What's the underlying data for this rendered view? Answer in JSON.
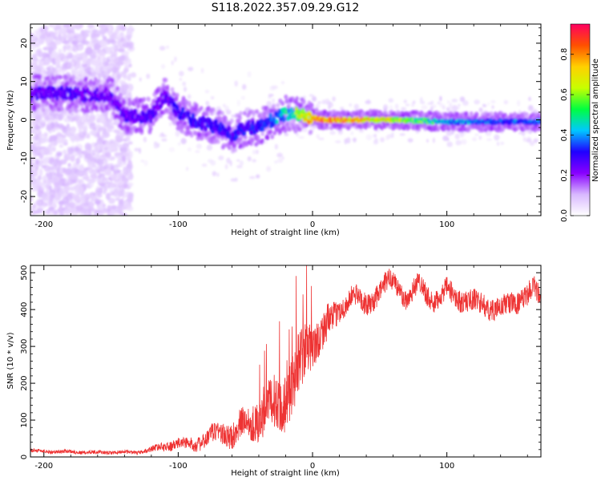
{
  "figure": {
    "title": "S118.2022.357.09.29.G12"
  },
  "chart_data": [
    {
      "type": "heatmap",
      "xlabel": "Height of straight line (km)",
      "ylabel": "Frequency (Hz)",
      "xlim": [
        -210,
        170
      ],
      "ylim": [
        -25,
        25
      ],
      "x_ticks": [
        -200,
        -100,
        0,
        100
      ],
      "y_ticks": [
        -20,
        -10,
        0,
        10,
        20
      ],
      "colorbar": {
        "label": "Normalized spectral amplitude",
        "range": [
          0,
          0.95
        ],
        "ticks": [
          "0.0",
          "0.2",
          "0.4",
          "0.6",
          "0.8"
        ],
        "colormap": [
          "#ffffff",
          "#d8b8ff",
          "#8800ff",
          "#2000ff",
          "#00c8ff",
          "#00ff40",
          "#c8ff00",
          "#ffd000",
          "#ff5000",
          "#ff0060"
        ]
      },
      "ridge": {
        "height_km": [
          -205,
          -190,
          -170,
          -150,
          -140,
          -130,
          -120,
          -110,
          -100,
          -90,
          -80,
          -70,
          -60,
          -50,
          -40,
          -30,
          -20,
          -10,
          0,
          10,
          30,
          60,
          100,
          140,
          170
        ],
        "frequency_hz": [
          7,
          7,
          6.5,
          6.5,
          1,
          1,
          1,
          6.5,
          2,
          0,
          -1,
          -2,
          -4,
          -2,
          -2,
          0,
          1.5,
          1.5,
          0.5,
          0,
          0,
          0,
          -0.5,
          -0.5,
          -0.5
        ],
        "amplitude": [
          0.3,
          0.32,
          0.3,
          0.28,
          0.3,
          0.3,
          0.3,
          0.28,
          0.35,
          0.35,
          0.35,
          0.35,
          0.35,
          0.35,
          0.38,
          0.4,
          0.5,
          0.65,
          0.85,
          0.9,
          0.85,
          0.7,
          0.45,
          0.4,
          0.4
        ]
      },
      "grid": false
    },
    {
      "type": "line",
      "xlabel": "Height of straight line (km)",
      "ylabel": "SNR (10 * v/v)",
      "xlim": [
        -210,
        170
      ],
      "ylim": [
        0,
        520
      ],
      "x_ticks": [
        -200,
        -100,
        0,
        100
      ],
      "y_ticks": [
        0,
        100,
        200,
        300,
        400,
        500
      ],
      "series": [
        {
          "color": "#ee3333",
          "x": [
            -210,
            -200,
            -180,
            -160,
            -140,
            -130,
            -120,
            -110,
            -100,
            -90,
            -80,
            -70,
            -60,
            -50,
            -40,
            -30,
            -20,
            -10,
            -5,
            0,
            10,
            15,
            20,
            25,
            30,
            40,
            50,
            55,
            60,
            70,
            80,
            90,
            100,
            110,
            120,
            130,
            140,
            150,
            160,
            165,
            170
          ],
          "y": [
            18,
            15,
            14,
            12,
            13,
            12,
            20,
            30,
            35,
            35,
            45,
            70,
            60,
            90,
            110,
            130,
            170,
            230,
            280,
            320,
            350,
            370,
            400,
            420,
            440,
            410,
            450,
            470,
            480,
            430,
            470,
            420,
            450,
            430,
            420,
            410,
            400,
            420,
            440,
            460,
            420
          ],
          "noise": [
            5,
            5,
            5,
            5,
            5,
            5,
            8,
            12,
            15,
            18,
            22,
            30,
            35,
            45,
            55,
            70,
            80,
            90,
            80,
            60,
            50,
            40,
            30,
            30,
            30,
            30,
            30,
            30,
            30,
            30,
            30,
            30,
            30,
            30,
            30,
            30,
            30,
            30,
            30,
            30,
            30
          ]
        }
      ],
      "grid": false
    }
  ]
}
